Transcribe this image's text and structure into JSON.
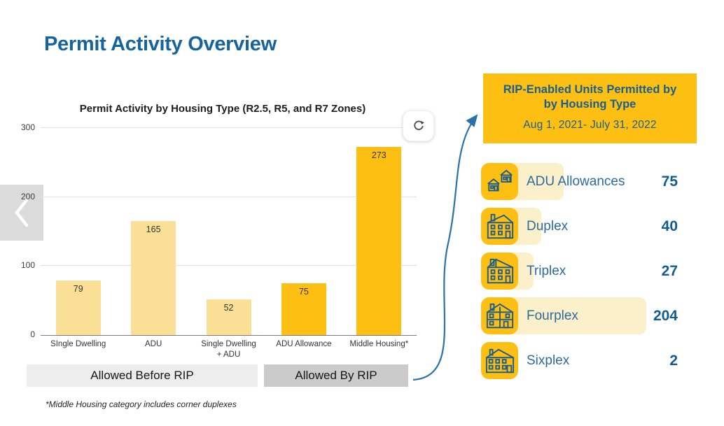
{
  "page": {
    "title": "Permit Activity Overview",
    "footnote": "*Middle Housing category includes corner duplexes"
  },
  "colors": {
    "title_blue": "#16639E",
    "gold": "#FCBF12",
    "light_gold_bar": "#FAE096",
    "cream_band": "#FCF0CB",
    "panel_text_blue": "#1B5E90",
    "arrow_blue": "#2A72A8",
    "before_rip_gray": "#EDEDED",
    "by_rip_gray": "#CBCBCB"
  },
  "chart_data": {
    "type": "bar",
    "title": "Permit Activity by Housing Type (R2.5, R5, and R7 Zones)",
    "categories": [
      "SIngle Dwelling",
      "ADU",
      "Single Dwelling\n+ ADU",
      "ADU Allowance",
      "Middle Housing*"
    ],
    "values": [
      79,
      165,
      52,
      75,
      273
    ],
    "bar_colors": [
      "#FAE096",
      "#FAE096",
      "#FAE096",
      "#FCBF12",
      "#FCBF12"
    ],
    "ylim": [
      0,
      300
    ],
    "yticks": [
      0,
      100,
      200,
      300
    ],
    "grid": true,
    "xlabel": "",
    "ylabel": "",
    "groups": [
      {
        "label": "Allowed Before RIP",
        "bars": [
          "SIngle Dwelling",
          "ADU",
          "Single Dwelling + ADU"
        ]
      },
      {
        "label": "Allowed By RIP",
        "bars": [
          "ADU Allowance",
          "Middle Housing*"
        ]
      }
    ]
  },
  "side_panel": {
    "header_line1": "RIP-Enabled Units Permitted by",
    "header_line2": "by Housing Type",
    "date_range": "Aug 1, 2021- July 31, 2022",
    "items": [
      {
        "label": "ADU Allowances",
        "value": 75,
        "icon": "adu-houses-icon"
      },
      {
        "label": "Duplex",
        "value": 40,
        "icon": "duplex-house-icon"
      },
      {
        "label": "Triplex",
        "value": 27,
        "icon": "triplex-house-icon"
      },
      {
        "label": "Fourplex",
        "value": 204,
        "icon": "fourplex-house-icon"
      },
      {
        "label": "Sixplex",
        "value": 2,
        "icon": "sixplex-house-icon"
      }
    ]
  }
}
